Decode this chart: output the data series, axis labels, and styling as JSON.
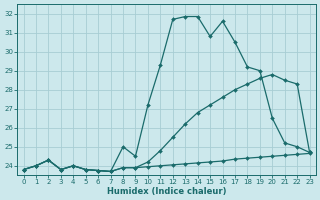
{
  "xlabel": "Humidex (Indice chaleur)",
  "ylabel": "",
  "bg_color": "#cce8ec",
  "grid_color": "#a8cdd4",
  "line_color": "#1a6b6b",
  "xlim": [
    -0.5,
    23.5
  ],
  "ylim": [
    23.5,
    32.5
  ],
  "xticks": [
    0,
    1,
    2,
    3,
    4,
    5,
    6,
    7,
    8,
    9,
    10,
    11,
    12,
    13,
    14,
    15,
    16,
    17,
    18,
    19,
    20,
    21,
    22,
    23
  ],
  "yticks": [
    24,
    25,
    26,
    27,
    28,
    29,
    30,
    31,
    32
  ],
  "line1_x": [
    0,
    1,
    2,
    3,
    4,
    5,
    6,
    7,
    8,
    9,
    10,
    11,
    12,
    13,
    14,
    15,
    16,
    17,
    18,
    19,
    20,
    21,
    22,
    23
  ],
  "line1_y": [
    23.8,
    24.0,
    24.3,
    23.8,
    24.0,
    23.8,
    23.75,
    23.7,
    25.0,
    24.5,
    27.2,
    29.3,
    31.7,
    31.85,
    31.85,
    30.8,
    31.6,
    30.5,
    29.2,
    29.0,
    26.5,
    25.2,
    25.0,
    24.7
  ],
  "line2_x": [
    0,
    1,
    2,
    3,
    4,
    5,
    6,
    7,
    8,
    9,
    10,
    11,
    12,
    13,
    14,
    15,
    16,
    17,
    18,
    19,
    20,
    21,
    22,
    23
  ],
  "line2_y": [
    23.8,
    24.0,
    24.3,
    23.8,
    24.0,
    23.8,
    23.75,
    23.7,
    23.9,
    23.9,
    23.95,
    24.0,
    24.05,
    24.1,
    24.15,
    24.2,
    24.25,
    24.35,
    24.4,
    24.45,
    24.5,
    24.55,
    24.6,
    24.65
  ],
  "line3_x": [
    0,
    1,
    2,
    3,
    4,
    5,
    6,
    7,
    8,
    9,
    10,
    11,
    12,
    13,
    14,
    15,
    16,
    17,
    18,
    19,
    20,
    21,
    22,
    23
  ],
  "line3_y": [
    23.8,
    24.0,
    24.3,
    23.8,
    24.0,
    23.8,
    23.75,
    23.7,
    23.9,
    23.9,
    24.2,
    24.8,
    25.5,
    26.2,
    26.8,
    27.2,
    27.6,
    28.0,
    28.3,
    28.6,
    28.8,
    28.5,
    28.3,
    24.7
  ]
}
